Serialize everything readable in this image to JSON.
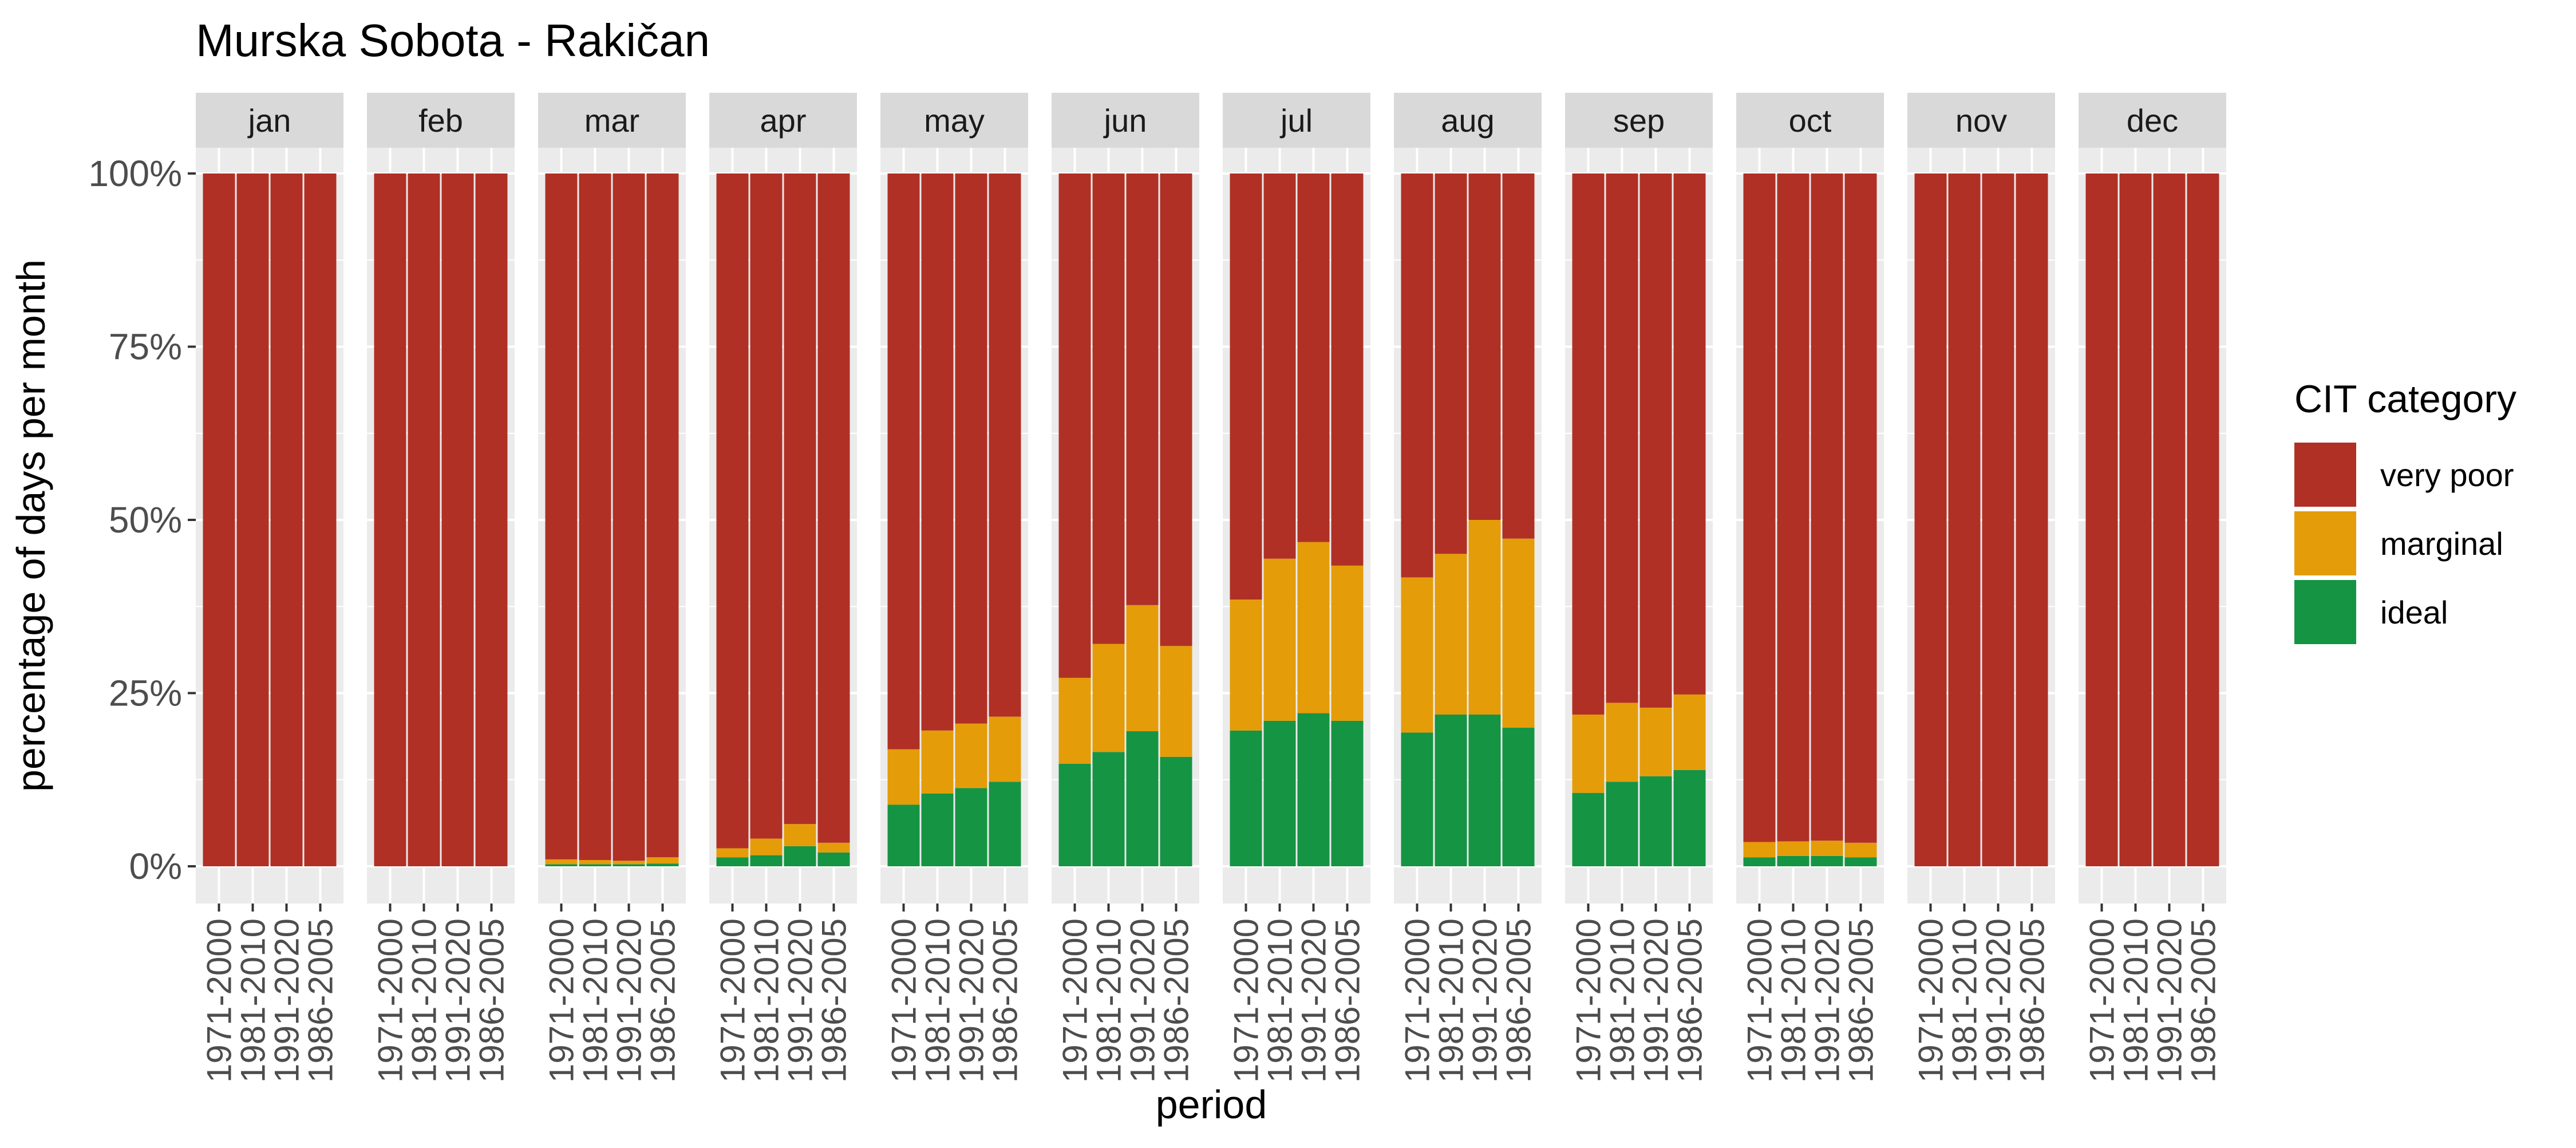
{
  "chart_data": {
    "type": "bar",
    "stacked": true,
    "title": "Murska Sobota - Rakičan",
    "xlabel": "period",
    "ylabel": "percentage of days per month",
    "ylim": [
      0,
      100
    ],
    "y_ticks": [
      "0%",
      "25%",
      "50%",
      "75%",
      "100%"
    ],
    "y_tick_values": [
      0,
      25,
      50,
      75,
      100
    ],
    "grid": true,
    "legend": {
      "title": "CIT category",
      "placement": "right",
      "entries": [
        {
          "name": "very poor",
          "color": "#B03026"
        },
        {
          "name": "marginal",
          "color": "#E49C09"
        },
        {
          "name": "ideal",
          "color": "#159444"
        }
      ]
    },
    "categories": [
      "1971-2000",
      "1981-2010",
      "1991-2020",
      "1986-2005"
    ],
    "facets": [
      {
        "label": "jan",
        "ideal": [
          0,
          0,
          0,
          0
        ],
        "marginal": [
          0,
          0,
          0,
          0
        ]
      },
      {
        "label": "feb",
        "ideal": [
          0,
          0,
          0,
          0
        ],
        "marginal": [
          0,
          0,
          0,
          0
        ]
      },
      {
        "label": "mar",
        "ideal": [
          0.3,
          0.3,
          0.3,
          0.4
        ],
        "marginal": [
          0.7,
          0.6,
          0.5,
          0.9
        ]
      },
      {
        "label": "apr",
        "ideal": [
          1.3,
          1.6,
          2.9,
          2.0
        ],
        "marginal": [
          1.3,
          2.4,
          3.2,
          1.4
        ]
      },
      {
        "label": "may",
        "ideal": [
          8.9,
          10.5,
          11.3,
          12.2
        ],
        "marginal": [
          8.0,
          9.1,
          9.3,
          9.4
        ]
      },
      {
        "label": "jun",
        "ideal": [
          14.8,
          16.5,
          19.5,
          15.8
        ],
        "marginal": [
          12.4,
          15.6,
          18.2,
          16.0
        ]
      },
      {
        "label": "jul",
        "ideal": [
          19.6,
          21.0,
          22.1,
          21.0
        ],
        "marginal": [
          18.9,
          23.4,
          24.7,
          22.4
        ]
      },
      {
        "label": "aug",
        "ideal": [
          19.3,
          21.9,
          21.9,
          20.0
        ],
        "marginal": [
          22.4,
          23.2,
          28.1,
          27.3
        ]
      },
      {
        "label": "sep",
        "ideal": [
          10.6,
          12.2,
          13.0,
          13.9
        ],
        "marginal": [
          11.3,
          11.4,
          9.9,
          10.9
        ]
      },
      {
        "label": "oct",
        "ideal": [
          1.3,
          1.5,
          1.5,
          1.3
        ],
        "marginal": [
          2.2,
          2.1,
          2.2,
          2.1
        ]
      },
      {
        "label": "nov",
        "ideal": [
          0,
          0,
          0,
          0
        ],
        "marginal": [
          0,
          0,
          0,
          0
        ]
      },
      {
        "label": "dec",
        "ideal": [
          0,
          0,
          0,
          0
        ],
        "marginal": [
          0,
          0,
          0,
          0
        ]
      }
    ]
  }
}
